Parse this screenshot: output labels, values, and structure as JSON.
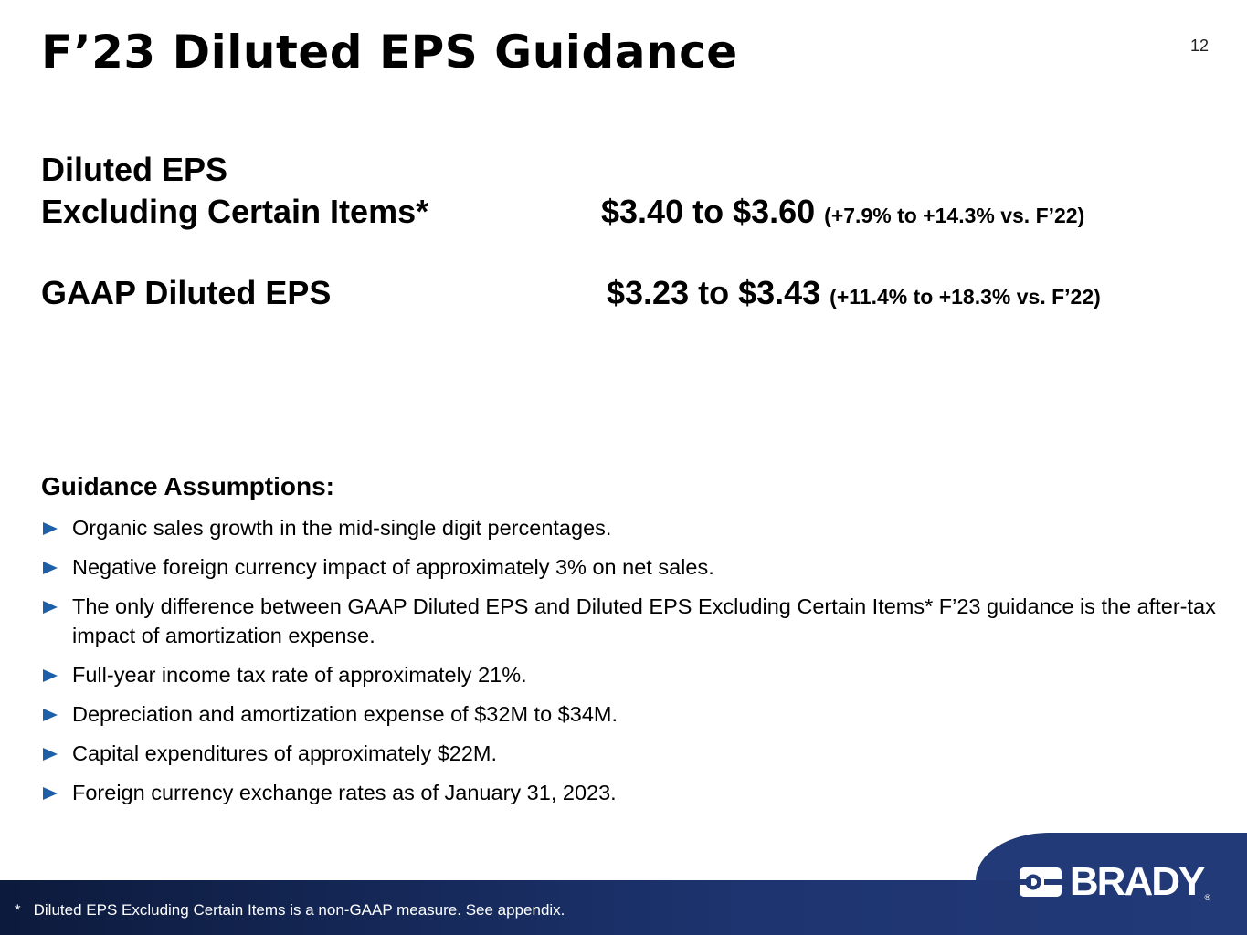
{
  "slide": {
    "title": "F’23 Diluted EPS Guidance",
    "page_number": "12"
  },
  "eps": {
    "adjusted": {
      "label_line1": "Diluted EPS",
      "label_line2": "Excluding Certain Items*",
      "value": "$3.40 to $3.60",
      "change": "(+7.9% to +14.3% vs. F’22)"
    },
    "gaap": {
      "label": "GAAP Diluted EPS",
      "value": "$3.23 to $3.43",
      "change": "(+11.4% to +18.3% vs. F’22)"
    }
  },
  "assumptions": {
    "heading": "Guidance Assumptions:",
    "items": [
      "Organic sales growth in the mid-single digit percentages.",
      "Negative foreign currency impact of approximately 3% on net sales.",
      "The only difference between GAAP Diluted EPS and Diluted EPS Excluding Certain Items* F’23 guidance is the after-tax impact of amortization expense.",
      "Full-year income tax rate of approximately 21%.",
      "Depreciation and amortization expense of $32M to $34M.",
      "Capital expenditures of approximately $22M.",
      "Foreign currency exchange rates as of January 31, 2023."
    ],
    "bullet_icon": "triangle-right-icon",
    "bullet_color": "#1f5fa8"
  },
  "footer": {
    "asterisk": "*",
    "note": "Diluted EPS Excluding Certain Items is a non-GAAP measure.  See appendix.",
    "logo_text": "BRADY",
    "logo_registered": "®",
    "bar_color": "#1d3470"
  }
}
